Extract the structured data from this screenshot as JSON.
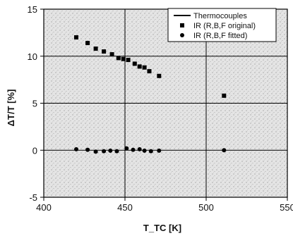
{
  "chart_data": {
    "type": "scatter",
    "title": "",
    "xlabel": "T_TC [K]",
    "ylabel": "ΔT/T [%]",
    "xlim": [
      400,
      550
    ],
    "ylim": [
      -5,
      15
    ],
    "xticks": [
      400,
      450,
      500,
      550
    ],
    "yticks": [
      -5,
      0,
      5,
      10,
      15
    ],
    "xtick_labels": [
      "400",
      "450",
      "500",
      "550"
    ],
    "ytick_labels": [
      "-5",
      "0",
      "5",
      "10",
      "15"
    ],
    "grid": true,
    "background": "stippled grey",
    "legend": {
      "placement": "top-right",
      "entries": [
        "Thermocouples",
        "IR (R,B,F original)",
        "IR (R,B,F fitted)"
      ]
    },
    "series": [
      {
        "name": "Thermocouples",
        "kind": "line",
        "color": "#000000",
        "x": [],
        "y": []
      },
      {
        "name": "IR (R,B,F original)",
        "kind": "scatter",
        "marker": "square",
        "color": "#000000",
        "x": [
          420,
          427,
          432,
          437,
          442,
          446,
          449,
          452,
          456,
          459,
          462,
          465,
          471,
          511
        ],
        "y": [
          12.0,
          11.4,
          10.8,
          10.5,
          10.2,
          9.8,
          9.7,
          9.6,
          9.2,
          8.9,
          8.8,
          8.4,
          7.9,
          5.8
        ]
      },
      {
        "name": "IR (R,B,F fitted)",
        "kind": "scatter",
        "marker": "circle",
        "color": "#000000",
        "x": [
          420,
          427,
          432,
          437,
          441,
          445,
          451,
          455,
          459,
          462,
          466,
          471,
          511
        ],
        "y": [
          0.1,
          0.05,
          -0.15,
          -0.1,
          -0.05,
          -0.1,
          0.2,
          0.05,
          0.1,
          -0.05,
          -0.1,
          -0.05,
          0.0
        ]
      }
    ]
  }
}
